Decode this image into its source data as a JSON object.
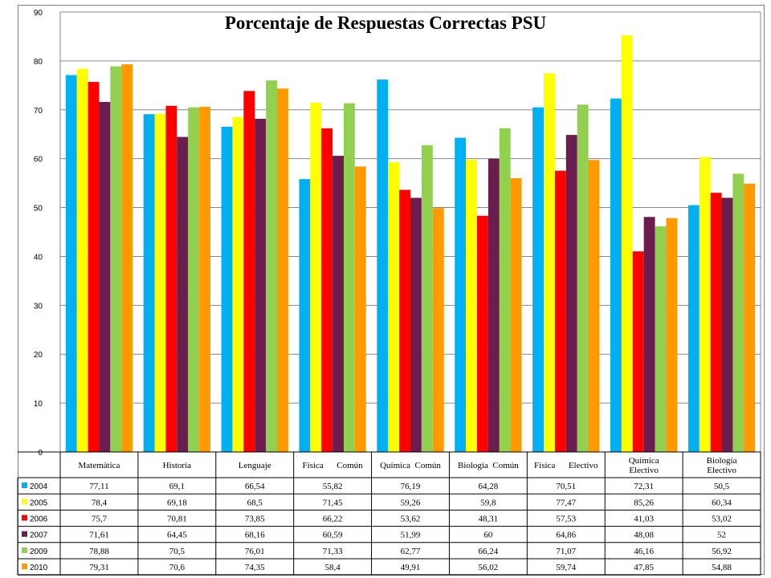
{
  "chart_data": {
    "type": "bar",
    "title": "Porcentaje de Respuestas Correctas PSU",
    "categories": [
      [
        "Matemática"
      ],
      [
        "Historia"
      ],
      [
        "Lenguaje"
      ],
      [
        "Física      Común"
      ],
      [
        "Química  Común"
      ],
      [
        "Biología  Común"
      ],
      [
        "Física      Electivo"
      ],
      [
        "Química",
        "Electivo"
      ],
      [
        "Biología",
        "Electivo"
      ]
    ],
    "ylim": [
      0,
      90
    ],
    "yticks": [
      0,
      10,
      20,
      30,
      40,
      50,
      60,
      70,
      80,
      90
    ],
    "grid": true,
    "legend": "data-table",
    "series": [
      {
        "name": "2004",
        "color": "#00B0F0",
        "values": [
          77.11,
          69.1,
          66.54,
          55.82,
          76.19,
          64.28,
          70.51,
          72.31,
          50.5
        ],
        "labels": [
          "77,11",
          "69,1",
          "66,54",
          "55,82",
          "76,19",
          "64,28",
          "70,51",
          "72,31",
          "50,5"
        ]
      },
      {
        "name": "2005",
        "color": "#FFFF00",
        "values": [
          78.4,
          69.18,
          68.5,
          71.45,
          59.26,
          59.8,
          77.47,
          85.26,
          60.34
        ],
        "labels": [
          "78,4",
          "69,18",
          "68,5",
          "71,45",
          "59,26",
          "59,8",
          "77,47",
          "85,26",
          "60,34"
        ]
      },
      {
        "name": "2006",
        "color": "#FF0000",
        "values": [
          75.7,
          70.81,
          73.85,
          66.22,
          53.62,
          48.31,
          57.53,
          41.03,
          53.02
        ],
        "labels": [
          "75,7",
          "70,81",
          "73,85",
          "66,22",
          "53,62",
          "48,31",
          "57,53",
          "41,03",
          "53,02"
        ]
      },
      {
        "name": "2007",
        "color": "#6B1D4F",
        "values": [
          71.61,
          64.45,
          68.16,
          60.59,
          51.99,
          60,
          64.86,
          48.08,
          52
        ],
        "labels": [
          "71,61",
          "64,45",
          "68,16",
          "60,59",
          "51,99",
          "60",
          "64,86",
          "48,08",
          "52"
        ]
      },
      {
        "name": "2009",
        "color": "#92D050",
        "values": [
          78.88,
          70.5,
          76.01,
          71.33,
          62.77,
          66.24,
          71.07,
          46.16,
          56.92
        ],
        "labels": [
          "78,88",
          "70,5",
          "76,01",
          "71,33",
          "62,77",
          "66,24",
          "71,07",
          "46,16",
          "56,92"
        ]
      },
      {
        "name": "2010",
        "color": "#FF9900",
        "values": [
          79.31,
          70.6,
          74.35,
          58.4,
          49.91,
          56.02,
          59.74,
          47.85,
          54.88
        ],
        "labels": [
          "79,31",
          "70,6",
          "74,35",
          "58,4",
          "49,91",
          "56,02",
          "59,74",
          "47,85",
          "54,88"
        ]
      }
    ]
  }
}
